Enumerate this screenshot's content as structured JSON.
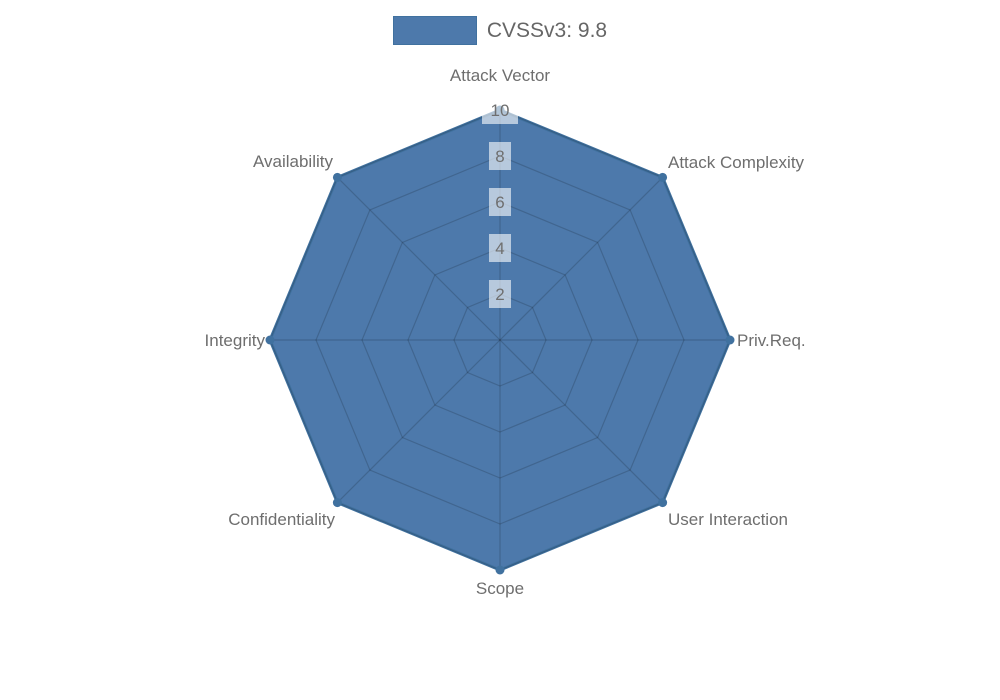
{
  "legend": {
    "items": [
      {
        "label": "CVSSv3: 9.8",
        "swatch_color": "#4d79ab"
      }
    ]
  },
  "chart_data": {
    "type": "radar",
    "title": "",
    "categories": [
      "Attack Vector",
      "Attack Complexity",
      "Priv.Req.",
      "User Interaction",
      "Scope",
      "Confidentiality",
      "Integrity",
      "Availability"
    ],
    "series": [
      {
        "name": "CVSSv3: 9.8",
        "values": [
          10,
          10,
          10,
          10,
          10,
          10,
          10,
          10
        ],
        "fill_color": "#4d79ab",
        "border_color": "#40719f"
      }
    ],
    "axis": {
      "min": 0,
      "max": 10,
      "step": 2,
      "tick_labels": [
        "2",
        "4",
        "6",
        "8",
        "10"
      ]
    },
    "grid": {
      "visible": true,
      "shape": "polygon",
      "line_color": "rgba(0,0,0,0.16)"
    },
    "legend_position": "top",
    "styles": {
      "label_color": "#6e6e6e",
      "tick_color": "#6f6f6f",
      "tick_backdrop": "rgba(255,255,255,0.6)",
      "background": "#ffffff"
    }
  }
}
